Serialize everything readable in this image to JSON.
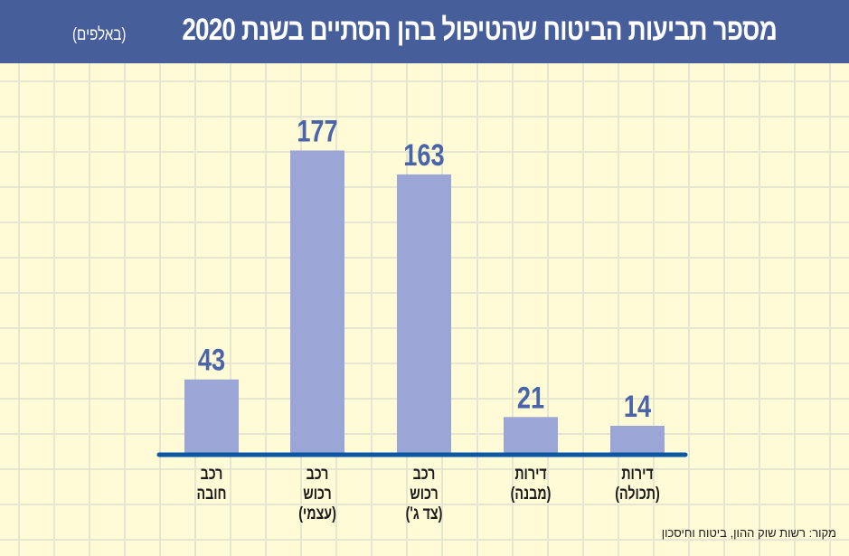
{
  "header": {
    "title": "מספר תביעות הביטוח שהטיפול בהן הסתיים בשנת 2020",
    "subtitle": "(באלפים)"
  },
  "chart_data": {
    "type": "bar",
    "title": "מספר תביעות הביטוח שהטיפול בהן הסתיים בשנת 2020",
    "subtitle": "(באלפים)",
    "categories": [
      [
        "רכב",
        "חובה"
      ],
      [
        "רכב",
        "רכוש",
        "(עצמי)"
      ],
      [
        "רכב",
        "רכוש",
        "(צד ג')"
      ],
      [
        "דירות",
        "(מבנה)"
      ],
      [
        "דירות",
        "(תכולה)"
      ]
    ],
    "values": [
      43,
      177,
      163,
      21,
      14
    ],
    "ylim": [
      0,
      180
    ],
    "grid": true,
    "bar_color": "#9ba6d6",
    "label_color": "#4a64aa",
    "axis_color": "#0b57a4"
  },
  "source": "מקור: רשות שוק ההון, ביטוח וחיסכון"
}
